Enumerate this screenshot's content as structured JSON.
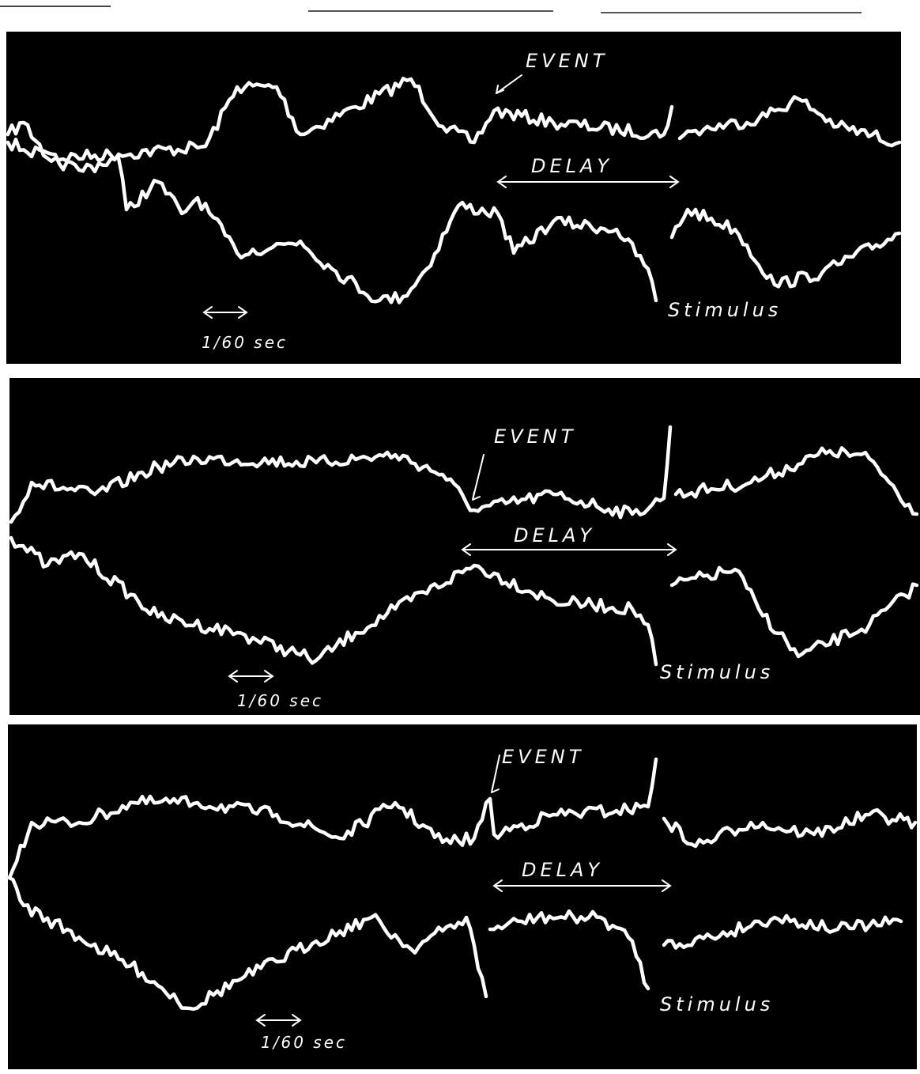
{
  "panels": [
    {
      "event": "EVENT",
      "delay": "DELAY",
      "stimulus": "Stimulus",
      "scale": "1/60 sec"
    },
    {
      "event": "EVENT",
      "delay": "DELAY",
      "stimulus": "Stimulus",
      "scale": "1/60 sec"
    },
    {
      "event": "EVENT",
      "delay": "DELAY",
      "stimulus": "Stimulus",
      "scale": "1/60 sec"
    }
  ]
}
